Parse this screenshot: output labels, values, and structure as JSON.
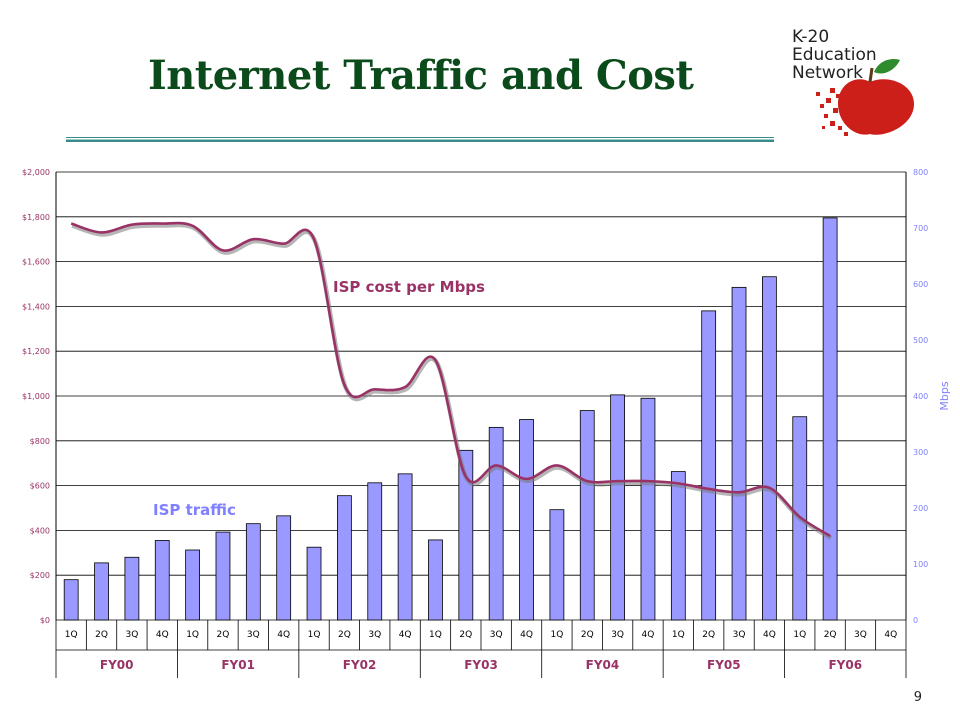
{
  "title": "Internet Traffic and Cost",
  "logo": {
    "line1": "K-20",
    "line2": "Education",
    "line3": "Network"
  },
  "page_number": "9",
  "colors": {
    "title": "#0b4a1a",
    "bar_fill": "#9999ff",
    "cost_line": "#993366",
    "traffic_label": "#8080ff"
  },
  "chart_data": {
    "type": "bar+line",
    "categories": [
      "1Q",
      "2Q",
      "3Q",
      "4Q",
      "1Q",
      "2Q",
      "3Q",
      "4Q",
      "1Q",
      "2Q",
      "3Q",
      "4Q",
      "1Q",
      "2Q",
      "3Q",
      "4Q",
      "1Q",
      "2Q",
      "3Q",
      "4Q",
      "1Q",
      "2Q",
      "3Q",
      "4Q",
      "1Q",
      "2Q",
      "3Q",
      "4Q"
    ],
    "groups": [
      "FY00",
      "FY01",
      "FY02",
      "FY03",
      "FY04",
      "FY05",
      "FY06"
    ],
    "series": [
      {
        "name": "ISP traffic",
        "type": "bar",
        "axis": "right",
        "values": [
          72,
          102,
          112,
          142,
          125,
          157,
          172,
          186,
          130,
          222,
          245,
          261,
          143,
          303,
          344,
          358,
          197,
          374,
          402,
          396,
          265,
          552,
          594,
          613,
          363,
          718,
          null,
          null
        ]
      },
      {
        "name": "ISP cost per Mbps",
        "type": "line",
        "axis": "left",
        "values": [
          1770,
          1730,
          1765,
          1770,
          1760,
          1650,
          1700,
          1680,
          1700,
          1050,
          1030,
          1040,
          1160,
          640,
          690,
          630,
          690,
          620,
          620,
          620,
          610,
          585,
          570,
          590,
          460,
          375,
          null,
          null
        ]
      }
    ],
    "ylim_left": [
      0,
      2000
    ],
    "yticks_left": [
      "$0",
      "$200",
      "$400",
      "$600",
      "$800",
      "$1,000",
      "$1,200",
      "$1,400",
      "$1,600",
      "$1,800",
      "$2,000"
    ],
    "ylim_right": [
      0,
      800
    ],
    "yticks_right": [
      "0",
      "100",
      "200",
      "300",
      "400",
      "500",
      "600",
      "700",
      "800"
    ],
    "ylabel_right": "Mbps",
    "grid": true,
    "annotations": [
      "ISP cost per Mbps",
      "ISP traffic"
    ]
  }
}
